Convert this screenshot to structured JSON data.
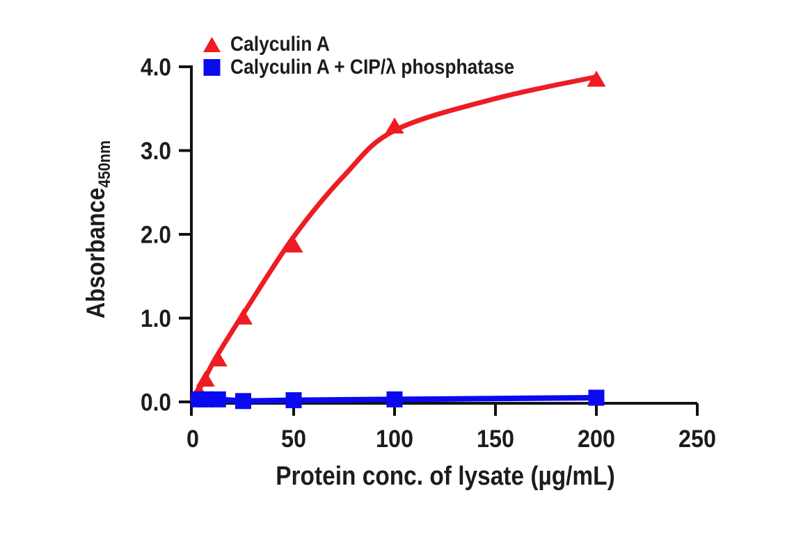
{
  "figure": {
    "background": "#ffffff",
    "axis_color": "#111111",
    "text_color": "#1c1c1c"
  },
  "chart_data": {
    "type": "scatter",
    "title": "",
    "xlabel": "Protein conc. of lysate (µg/mL)",
    "ylabel": "Absorbance",
    "ylabel_subscript": "450nm",
    "xlim": [
      0,
      250
    ],
    "ylim": [
      0,
      4
    ],
    "x_ticks": [
      0,
      50,
      100,
      150,
      200,
      250
    ],
    "y_ticks": [
      "0.0",
      "1.0",
      "2.0",
      "3.0",
      "4.0"
    ],
    "grid": false,
    "legend_position": "top-left",
    "series": [
      {
        "name": "Calyculin A",
        "marker": "triangle",
        "color": "#EE1C23",
        "x": [
          3.1,
          6.3,
          12.5,
          25,
          50,
          100,
          200
        ],
        "y": [
          0.12,
          0.27,
          0.51,
          1.01,
          1.87,
          3.29,
          3.85
        ],
        "curve_style": "smooth",
        "curve": {
          "x": [
            0,
            3,
            6,
            12,
            25,
            50,
            75,
            100,
            150,
            200
          ],
          "y": [
            0.02,
            0.14,
            0.28,
            0.55,
            1.05,
            1.97,
            2.7,
            3.24,
            3.62,
            3.88
          ]
        }
      },
      {
        "name": "Calyculin A + CIP/λ phosphatase",
        "marker": "square",
        "color": "#0A0AF0",
        "x": [
          3.1,
          6.3,
          12.5,
          25,
          50,
          100,
          200
        ],
        "y": [
          0.03,
          0.03,
          0.03,
          0.01,
          0.02,
          0.03,
          0.05
        ],
        "curve_style": "straight",
        "curve": {
          "x": [
            0,
            3.1,
            6.3,
            12.5,
            25,
            50,
            100,
            200
          ],
          "y": [
            0.03,
            0.03,
            0.03,
            0.03,
            0.01,
            0.02,
            0.03,
            0.05
          ]
        }
      }
    ]
  }
}
